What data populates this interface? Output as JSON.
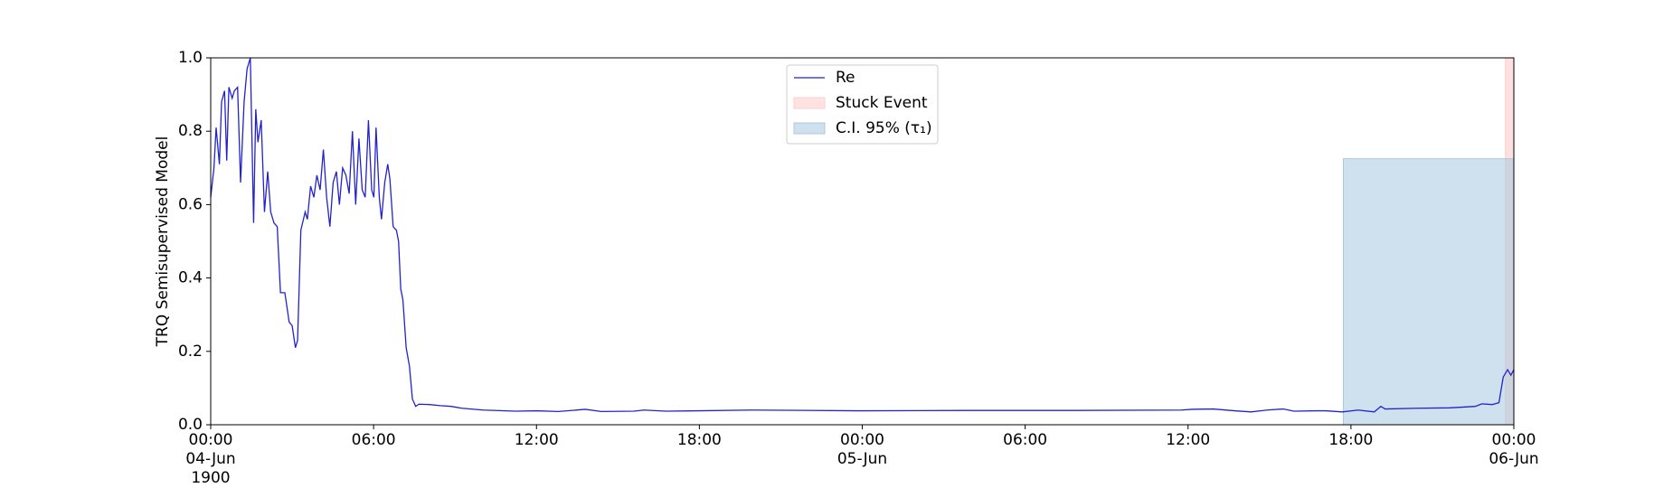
{
  "chart_data": {
    "type": "line",
    "ylabel": "TRQ Semisupervised Model",
    "xlim": [
      0,
      48
    ],
    "ylim": [
      0,
      1
    ],
    "xticks": [
      {
        "value": 0,
        "label": "00:00\n04-Jun\n1900"
      },
      {
        "value": 6,
        "label": "06:00"
      },
      {
        "value": 12,
        "label": "12:00"
      },
      {
        "value": 18,
        "label": "18:00"
      },
      {
        "value": 24,
        "label": "00:00\n05-Jun"
      },
      {
        "value": 30,
        "label": "06:00"
      },
      {
        "value": 36,
        "label": "12:00"
      },
      {
        "value": 42,
        "label": "18:00"
      },
      {
        "value": 48,
        "label": "00:00\n06-Jun"
      }
    ],
    "yticks": [
      {
        "value": 0,
        "label": "0.0"
      },
      0.2,
      0.4,
      0.6,
      0.8,
      {
        "value": 1,
        "label": "1.0"
      }
    ],
    "x": [
      0,
      0.12,
      0.2,
      0.32,
      0.4,
      0.51,
      0.59,
      0.67,
      0.79,
      0.87,
      0.99,
      1.1,
      1.23,
      1.34,
      1.46,
      1.58,
      1.66,
      1.74,
      1.86,
      1.98,
      2.1,
      2.21,
      2.33,
      2.45,
      2.57,
      2.73,
      2.89,
      3.0,
      3.12,
      3.2,
      3.32,
      3.48,
      3.56,
      3.68,
      3.8,
      3.91,
      4.03,
      4.15,
      4.27,
      4.39,
      4.51,
      4.63,
      4.74,
      4.86,
      4.98,
      5.1,
      5.22,
      5.34,
      5.46,
      5.58,
      5.69,
      5.81,
      5.93,
      6.01,
      6.09,
      6.21,
      6.29,
      6.41,
      6.52,
      6.6,
      6.72,
      6.84,
      6.92,
      7.0,
      7.08,
      7.2,
      7.32,
      7.43,
      7.55,
      7.67,
      8.07,
      8.46,
      8.86,
      9.25,
      10.04,
      11.23,
      12.02,
      12.8,
      13.8,
      14.39,
      15.58,
      15.97,
      16.77,
      17.95,
      19.93,
      23.88,
      27.84,
      31.79,
      35.75,
      36.14,
      36.93,
      37.72,
      38.32,
      38.91,
      39.5,
      39.9,
      40.69,
      41.08,
      41.68,
      42.27,
      42.86,
      43.1,
      43.26,
      44.44,
      45.63,
      46.58,
      46.82,
      47.21,
      47.45,
      47.61,
      47.77,
      47.89,
      48
    ],
    "series": [
      {
        "name": "Re",
        "color": "#2222cc",
        "values": [
          0.62,
          0.7,
          0.81,
          0.71,
          0.88,
          0.91,
          0.72,
          0.92,
          0.89,
          0.91,
          0.92,
          0.66,
          0.88,
          0.97,
          1.0,
          0.55,
          0.86,
          0.77,
          0.83,
          0.58,
          0.69,
          0.58,
          0.55,
          0.54,
          0.36,
          0.36,
          0.28,
          0.27,
          0.21,
          0.23,
          0.53,
          0.58,
          0.56,
          0.65,
          0.62,
          0.68,
          0.64,
          0.75,
          0.62,
          0.54,
          0.66,
          0.69,
          0.6,
          0.7,
          0.68,
          0.63,
          0.8,
          0.6,
          0.78,
          0.64,
          0.62,
          0.83,
          0.64,
          0.62,
          0.81,
          0.62,
          0.56,
          0.66,
          0.71,
          0.67,
          0.54,
          0.53,
          0.5,
          0.37,
          0.34,
          0.21,
          0.16,
          0.07,
          0.05,
          0.056,
          0.055,
          0.052,
          0.05,
          0.045,
          0.04,
          0.037,
          0.038,
          0.036,
          0.042,
          0.036,
          0.037,
          0.04,
          0.037,
          0.038,
          0.04,
          0.038,
          0.039,
          0.039,
          0.04,
          0.042,
          0.043,
          0.038,
          0.035,
          0.04,
          0.043,
          0.037,
          0.038,
          0.038,
          0.035,
          0.04,
          0.035,
          0.05,
          0.043,
          0.045,
          0.046,
          0.05,
          0.057,
          0.055,
          0.06,
          0.13,
          0.15,
          0.135,
          0.15
        ]
      }
    ],
    "spans": [
      {
        "name": "Stuck Event",
        "color": "#ffcccc",
        "x": [
          47.69,
          48
        ]
      },
      {
        "name": "C.I. 95% (τ₁)",
        "color": "#a8c8e0",
        "x": [
          41.72,
          48
        ],
        "y": [
          0,
          0.725
        ]
      }
    ],
    "legend": "upper center"
  }
}
